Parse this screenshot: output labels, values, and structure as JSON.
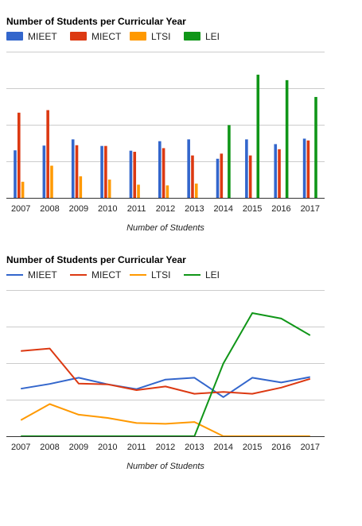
{
  "chart_data": [
    {
      "type": "bar",
      "title": "Number of Students per Curricular Year",
      "xlabel": "Number of Students",
      "ylabel": "",
      "categories": [
        "2007",
        "2008",
        "2009",
        "2010",
        "2011",
        "2012",
        "2013",
        "2014",
        "2015",
        "2016",
        "2017"
      ],
      "ylim": [
        0,
        400
      ],
      "grid": true,
      "legend_position": "top",
      "series": [
        {
          "name": "MIEET",
          "color": "#3366cc",
          "values": [
            130,
            143,
            160,
            142,
            129,
            155,
            160,
            107,
            160,
            147,
            162
          ]
        },
        {
          "name": "MIECT",
          "color": "#dc3912",
          "values": [
            233,
            240,
            144,
            142,
            126,
            136,
            116,
            121,
            116,
            133,
            157
          ]
        },
        {
          "name": "LTSI",
          "color": "#ff9900",
          "values": [
            44,
            88,
            59,
            50,
            36,
            34,
            39,
            0,
            0,
            0,
            0
          ]
        },
        {
          "name": "LEI",
          "color": "#109618",
          "values": [
            0,
            0,
            0,
            0,
            0,
            0,
            0,
            199,
            337,
            322,
            276
          ]
        }
      ]
    },
    {
      "type": "line",
      "title": "Number of Students per Curricular Year",
      "xlabel": "Number of Students",
      "ylabel": "",
      "categories": [
        "2007",
        "2008",
        "2009",
        "2010",
        "2011",
        "2012",
        "2013",
        "2014",
        "2015",
        "2016",
        "2017"
      ],
      "ylim": [
        0,
        400
      ],
      "grid": true,
      "legend_position": "top",
      "series": [
        {
          "name": "MIEET",
          "color": "#3366cc",
          "values": [
            130,
            143,
            160,
            142,
            129,
            155,
            160,
            107,
            160,
            147,
            162
          ]
        },
        {
          "name": "MIECT",
          "color": "#dc3912",
          "values": [
            233,
            240,
            144,
            142,
            126,
            136,
            116,
            121,
            116,
            133,
            157
          ]
        },
        {
          "name": "LTSI",
          "color": "#ff9900",
          "values": [
            44,
            88,
            59,
            50,
            36,
            34,
            39,
            0,
            0,
            0,
            0
          ]
        },
        {
          "name": "LEI",
          "color": "#109618",
          "values": [
            0,
            0,
            0,
            0,
            0,
            0,
            0,
            199,
            337,
            322,
            276
          ]
        }
      ]
    }
  ]
}
